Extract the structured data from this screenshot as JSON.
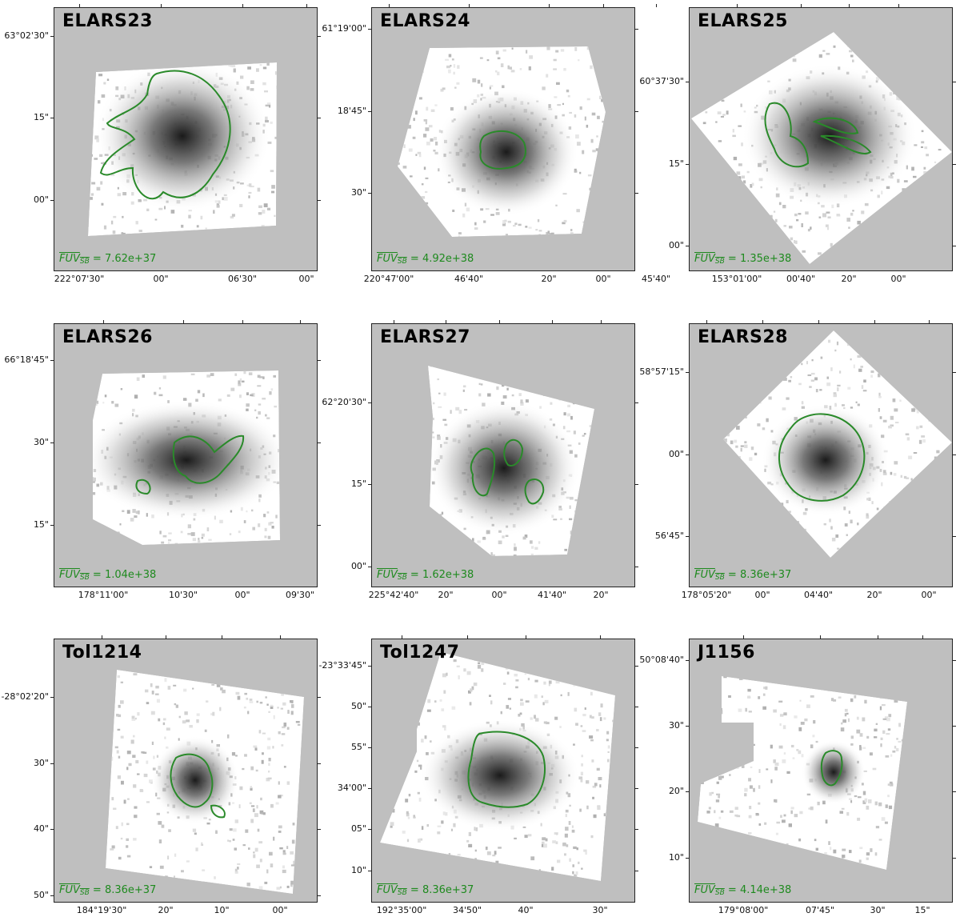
{
  "figure": {
    "colors": {
      "background": "#bfbfbf",
      "contour": "#2a8a2a",
      "fuv_text": "#1e8a1e"
    },
    "panels": [
      {
        "id": "elars23",
        "title": "ELARS23",
        "fuv_label": "FUV",
        "fuv_sub": "SB",
        "fuv_value": "= 7.62e+37",
        "yticks": [
          "63°02'30\"",
          "15\"",
          "00\""
        ],
        "xticks": [
          "222°07'30\"",
          "00\"",
          "06'30\"",
          "00\""
        ]
      },
      {
        "id": "elars24",
        "title": "ELARS24",
        "fuv_label": "FUV",
        "fuv_sub": "SB",
        "fuv_value": "= 4.92e+38",
        "yticks": [
          "61°19'00\"",
          "18'45\"",
          "30\""
        ],
        "xticks": [
          "220°47'00\"",
          "46'40\"",
          "20\"",
          "00\"",
          "45'40\""
        ]
      },
      {
        "id": "elars25",
        "title": "ELARS25",
        "fuv_label": "FUV",
        "fuv_sub": "SB",
        "fuv_value": "= 1.35e+38",
        "yticks": [
          "60°37'30\"",
          "15\"",
          "00\""
        ],
        "xticks": [
          "153°01'00\"",
          "00'40\"",
          "20\"",
          "00\""
        ]
      },
      {
        "id": "elars26",
        "title": "ELARS26",
        "fuv_label": "FUV",
        "fuv_sub": "SB",
        "fuv_value": "= 1.04e+38",
        "yticks": [
          "66°18'45\"",
          "30\"",
          "15\""
        ],
        "xticks": [
          "178°11'00\"",
          "10'30\"",
          "00\"",
          "09'30\""
        ]
      },
      {
        "id": "elars27",
        "title": "ELARS27",
        "fuv_label": "FUV",
        "fuv_sub": "SB",
        "fuv_value": "= 1.62e+38",
        "yticks": [
          "62°20'30\"",
          "15\"",
          "00\""
        ],
        "xticks": [
          "225°42'40\"",
          "20\"",
          "00\"",
          "41'40\"",
          "20\""
        ]
      },
      {
        "id": "elars28",
        "title": "ELARS28",
        "fuv_label": "FUV",
        "fuv_sub": "SB",
        "fuv_value": "= 8.36e+37",
        "yticks": [
          "58°57'15\"",
          "00\"",
          "56'45\""
        ],
        "xticks": [
          "178°05'20\"",
          "00\"",
          "04'40\"",
          "20\"",
          "00\""
        ]
      },
      {
        "id": "tol1214",
        "title": "Tol1214",
        "fuv_label": "FUV",
        "fuv_sub": "SB",
        "fuv_value": "= 8.36e+37",
        "yticks": [
          "-28°02'20\"",
          "30\"",
          "40\"",
          "50\""
        ],
        "xticks": [
          "184°19'30\"",
          "20\"",
          "10\"",
          "00\""
        ]
      },
      {
        "id": "tol1247",
        "title": "Tol1247",
        "fuv_label": "FUV",
        "fuv_sub": "SB",
        "fuv_value": "= 8.36e+37",
        "yticks": [
          "-23°33'45\"",
          "50\"",
          "55\"",
          "34'00\"",
          "05\"",
          "10\""
        ],
        "xticks": [
          "192°35'00\"",
          "34'50\"",
          "40\"",
          "30\""
        ]
      },
      {
        "id": "j1156",
        "title": "J1156",
        "fuv_label": "FUV",
        "fuv_sub": "SB",
        "fuv_value": "= 4.14e+38",
        "yticks": [
          "50°08'40\"",
          "30\"",
          "20\"",
          "10\""
        ],
        "xticks": [
          "179°08'00\"",
          "07'45\"",
          "30\"",
          "15\""
        ]
      }
    ]
  }
}
